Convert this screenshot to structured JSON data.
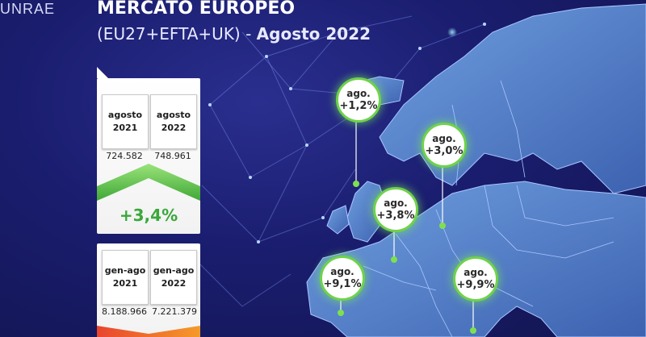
{
  "logo": {
    "text": "UNRAE"
  },
  "header": {
    "title": "MERCATO EUROPEO",
    "subtitle_main": "(EU27+EFTA+UK)",
    "subtitle_sep": " - ",
    "subtitle_period": "Agosto 2022"
  },
  "monthly": {
    "cards": [
      {
        "line1": "agosto",
        "line2": "2021",
        "value": "724.582"
      },
      {
        "line1": "agosto",
        "line2": "2022",
        "value": "748.961"
      }
    ],
    "change": "+3,4%",
    "trend_color": "#4fbf3a"
  },
  "ytd": {
    "cards": [
      {
        "line1": "gen-ago",
        "line2": "2021",
        "value": "8.188.966"
      },
      {
        "line1": "gen-ago",
        "line2": "2022",
        "value": "7.221.379"
      }
    ],
    "trend_color": "#e8452e"
  },
  "map_bubbles": [
    {
      "line1": "ago.",
      "line2": "+1,2%"
    },
    {
      "line1": "ago.",
      "line2": "+3,0%"
    },
    {
      "line1": "ago.",
      "line2": "+3,8%"
    },
    {
      "line1": "ago.",
      "line2": "+9,1%"
    },
    {
      "line1": "ago.",
      "line2": "+9,9%"
    }
  ],
  "colors": {
    "background": "#1a1d6e",
    "map_land": "#4f7fc9",
    "bubble_border": "#6fd24a",
    "positive": "#3aa83a"
  }
}
